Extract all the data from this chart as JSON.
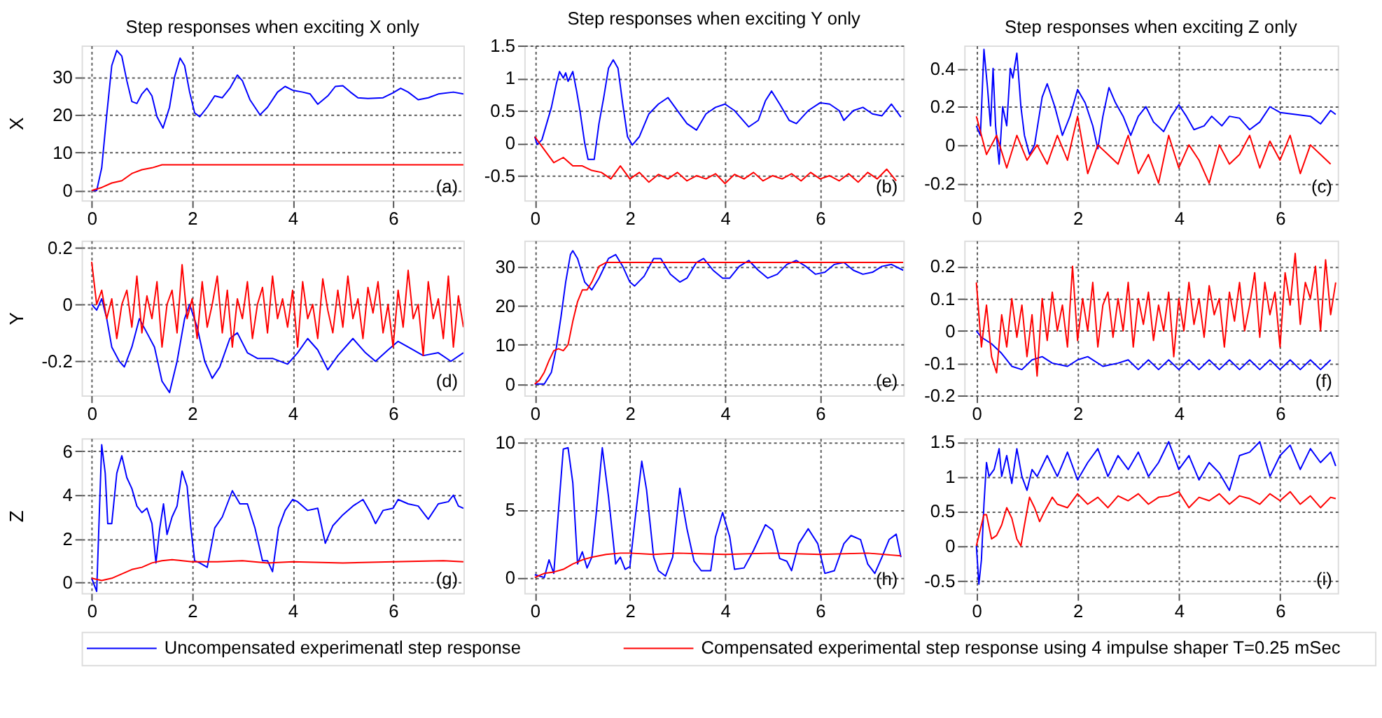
{
  "chart_data": [
    {
      "type": "line",
      "title": "Step responses when exciting X only",
      "ylabel": "X",
      "xlim": [
        -0.2,
        7.4
      ],
      "ylim": [
        -2.6,
        38.3
      ],
      "xticks": [
        0,
        2,
        4,
        6
      ],
      "yticks": [
        0,
        10,
        20,
        30
      ],
      "grid": true,
      "annotations": [
        "(a)"
      ],
      "series": [
        {
          "color": "#0000ff",
          "x": [
            0,
            0.1,
            0.2,
            0.3,
            0.4,
            0.5,
            0.6,
            0.7,
            0.8,
            0.9,
            1.0,
            1.1,
            1.2,
            1.3,
            1.42,
            1.55,
            1.65,
            1.76,
            1.85,
            1.95,
            2.05,
            2.15,
            2.3,
            2.45,
            2.6,
            2.75,
            2.9,
            3.0,
            3.15,
            3.35,
            3.5,
            3.7,
            3.85,
            4.0,
            4.2,
            4.35,
            4.5,
            4.7,
            4.85,
            5.0,
            5.15,
            5.3,
            5.5,
            5.8,
            6.0,
            6.15,
            6.3,
            6.5,
            6.7,
            6.9,
            7.2,
            7.4
          ],
          "values": [
            0,
            0,
            6,
            20,
            33,
            37,
            35.5,
            29,
            23.5,
            23,
            25.5,
            27,
            25,
            19.5,
            16.5,
            22,
            30,
            35,
            33,
            26,
            20.5,
            19.5,
            22,
            25,
            24.5,
            27,
            30.5,
            29,
            24,
            20,
            22,
            26,
            27.5,
            26.5,
            26,
            25.5,
            22.8,
            25,
            27.5,
            27.7,
            26,
            24.5,
            24.3,
            24.5,
            25.8,
            27,
            26,
            24,
            24.5,
            25.5,
            26,
            25.5
          ]
        },
        {
          "color": "#ff0000",
          "x": [
            0,
            0.2,
            0.4,
            0.6,
            0.8,
            1.0,
            1.2,
            1.4,
            2,
            4,
            6,
            7.4
          ],
          "values": [
            0,
            0.8,
            2,
            2.6,
            4.5,
            5.5,
            6,
            6.8,
            6.8,
            6.8,
            6.8,
            6.8
          ]
        }
      ]
    },
    {
      "type": "line",
      "title": "Step responses when exciting Y only",
      "xlim": [
        -0.22,
        7.75
      ],
      "ylim": [
        -0.88,
        1.5
      ],
      "xticks": [
        0,
        2,
        4,
        6
      ],
      "yticks": [
        -0.5,
        0,
        0.5,
        1,
        1.5
      ],
      "grid": true,
      "annotations": [
        "(b)"
      ],
      "series": [
        {
          "color": "#0000ff",
          "x": [
            0,
            0.05,
            0.15,
            0.25,
            0.35,
            0.45,
            0.52,
            0.6,
            0.65,
            0.7,
            0.8,
            0.88,
            0.95,
            1.05,
            1.12,
            1.25,
            1.35,
            1.45,
            1.55,
            1.65,
            1.75,
            1.85,
            1.95,
            2.05,
            2.2,
            2.4,
            2.6,
            2.8,
            3.0,
            3.2,
            3.4,
            3.6,
            3.8,
            4.0,
            4.2,
            4.5,
            4.7,
            4.85,
            4.98,
            5.15,
            5.35,
            5.5,
            5.75,
            6.0,
            6.2,
            6.4,
            6.5,
            6.7,
            6.9,
            7.1,
            7.3,
            7.5,
            7.7
          ],
          "values": [
            0.1,
            -0.02,
            0.05,
            0.3,
            0.55,
            0.9,
            1.1,
            1.0,
            1.08,
            0.95,
            1.1,
            0.8,
            0.5,
            0.0,
            -0.25,
            -0.25,
            0.3,
            0.7,
            1.15,
            1.28,
            1.15,
            0.6,
            0.1,
            -0.03,
            0.1,
            0.45,
            0.6,
            0.7,
            0.5,
            0.3,
            0.2,
            0.45,
            0.55,
            0.6,
            0.5,
            0.25,
            0.35,
            0.65,
            0.8,
            0.6,
            0.35,
            0.3,
            0.5,
            0.62,
            0.6,
            0.5,
            0.35,
            0.5,
            0.55,
            0.45,
            0.42,
            0.6,
            0.4
          ]
        },
        {
          "color": "#ff0000",
          "x": [
            0,
            0.2,
            0.4,
            0.6,
            0.8,
            1.0,
            1.2,
            1.4,
            1.6,
            1.8,
            2.0,
            2.2,
            2.4,
            2.6,
            2.8,
            3.0,
            3.2,
            3.4,
            3.6,
            3.8,
            4.0,
            4.2,
            4.4,
            4.6,
            4.8,
            5.0,
            5.2,
            5.4,
            5.6,
            5.8,
            6.0,
            6.2,
            6.4,
            6.6,
            6.8,
            7.0,
            7.2,
            7.4,
            7.6
          ],
          "values": [
            0.1,
            -0.1,
            -0.3,
            -0.22,
            -0.35,
            -0.35,
            -0.42,
            -0.45,
            -0.55,
            -0.35,
            -0.55,
            -0.45,
            -0.6,
            -0.48,
            -0.55,
            -0.45,
            -0.58,
            -0.5,
            -0.55,
            -0.47,
            -0.62,
            -0.48,
            -0.55,
            -0.45,
            -0.58,
            -0.5,
            -0.55,
            -0.47,
            -0.58,
            -0.45,
            -0.55,
            -0.5,
            -0.58,
            -0.47,
            -0.6,
            -0.45,
            -0.55,
            -0.4,
            -0.58
          ]
        }
      ]
    },
    {
      "type": "line",
      "title": "Step responses when exciting Z only",
      "xlim": [
        -0.24,
        7.14
      ],
      "ylim": [
        -0.29,
        0.52
      ],
      "xticks": [
        0,
        2,
        4,
        6
      ],
      "yticks": [
        -0.2,
        0,
        0.2,
        0.4
      ],
      "grid": true,
      "annotations": [
        "(c)"
      ],
      "series": [
        {
          "color": "#0000ff",
          "x": [
            0,
            0.08,
            0.15,
            0.22,
            0.28,
            0.33,
            0.38,
            0.45,
            0.52,
            0.6,
            0.67,
            0.72,
            0.8,
            0.88,
            0.95,
            1.05,
            1.15,
            1.3,
            1.4,
            1.55,
            1.7,
            1.85,
            2.0,
            2.15,
            2.3,
            2.4,
            2.5,
            2.62,
            2.75,
            2.9,
            3.05,
            3.2,
            3.35,
            3.5,
            3.7,
            3.85,
            4.0,
            4.15,
            4.3,
            4.5,
            4.65,
            4.85,
            5.0,
            5.2,
            5.4,
            5.6,
            5.8,
            6.0,
            6.3,
            6.6,
            6.8,
            7.0,
            7.1
          ],
          "values": [
            0.1,
            0.05,
            0.5,
            0.3,
            0.1,
            0.4,
            0.1,
            -0.1,
            0.2,
            0.1,
            0.4,
            0.35,
            0.48,
            0.2,
            0.05,
            -0.05,
            0.0,
            0.25,
            0.32,
            0.2,
            0.05,
            0.15,
            0.29,
            0.22,
            0.1,
            -0.02,
            0.15,
            0.3,
            0.22,
            0.15,
            0.05,
            0.15,
            0.2,
            0.12,
            0.07,
            0.15,
            0.21,
            0.15,
            0.08,
            0.1,
            0.15,
            0.1,
            0.15,
            0.14,
            0.08,
            0.12,
            0.2,
            0.17,
            0.16,
            0.15,
            0.11,
            0.18,
            0.16
          ]
        },
        {
          "color": "#ff0000",
          "x": [
            0,
            0.2,
            0.4,
            0.6,
            0.8,
            1.0,
            1.2,
            1.4,
            1.6,
            1.8,
            2.0,
            2.2,
            2.4,
            2.6,
            2.8,
            3.0,
            3.2,
            3.4,
            3.6,
            3.8,
            4.0,
            4.2,
            4.4,
            4.6,
            4.8,
            5.0,
            5.2,
            5.4,
            5.6,
            5.8,
            6.0,
            6.2,
            6.4,
            6.6,
            6.8,
            7.0
          ],
          "values": [
            0.15,
            -0.05,
            0.05,
            -0.12,
            0.05,
            -0.08,
            0.0,
            -0.1,
            0.05,
            -0.08,
            0.15,
            -0.15,
            0.0,
            -0.05,
            -0.1,
            0.05,
            -0.15,
            -0.05,
            -0.2,
            0.05,
            -0.12,
            0.0,
            -0.08,
            -0.2,
            0.0,
            -0.1,
            -0.05,
            0.05,
            -0.12,
            0.02,
            -0.08,
            0.05,
            -0.15,
            0.0,
            -0.05,
            -0.1
          ]
        }
      ]
    },
    {
      "type": "line",
      "ylabel": "Y",
      "xlim": [
        -0.2,
        7.4
      ],
      "ylim": [
        -0.32,
        0.225
      ],
      "xticks": [
        0,
        2,
        4,
        6
      ],
      "yticks": [
        -0.2,
        0,
        0.2
      ],
      "grid": true,
      "annotations": [
        "(d)"
      ],
      "series": [
        {
          "color": "#0000ff",
          "x": [
            0,
            0.1,
            0.2,
            0.3,
            0.4,
            0.55,
            0.65,
            0.8,
            0.95,
            1.1,
            1.25,
            1.4,
            1.55,
            1.7,
            1.85,
            1.95,
            2.1,
            2.25,
            2.4,
            2.55,
            2.75,
            2.9,
            3.1,
            3.3,
            3.6,
            3.9,
            4.1,
            4.3,
            4.5,
            4.7,
            4.9,
            5.2,
            5.45,
            5.65,
            5.9,
            6.1,
            6.3,
            6.6,
            6.9,
            7.15,
            7.4
          ],
          "values": [
            0.0,
            -0.02,
            0.02,
            -0.05,
            -0.15,
            -0.2,
            -0.22,
            -0.15,
            -0.05,
            -0.1,
            -0.15,
            -0.27,
            -0.31,
            -0.2,
            -0.05,
            0.0,
            -0.08,
            -0.2,
            -0.26,
            -0.22,
            -0.12,
            -0.1,
            -0.17,
            -0.19,
            -0.19,
            -0.21,
            -0.17,
            -0.12,
            -0.16,
            -0.23,
            -0.18,
            -0.12,
            -0.17,
            -0.2,
            -0.16,
            -0.13,
            -0.15,
            -0.18,
            -0.17,
            -0.2,
            -0.17
          ]
        },
        {
          "color": "#ff0000",
          "x": [
            0,
            0.1,
            0.2,
            0.3,
            0.4,
            0.5,
            0.6,
            0.7,
            0.8,
            0.9,
            1,
            1.1,
            1.2,
            1.3,
            1.4,
            1.5,
            1.6,
            1.7,
            1.8,
            1.9,
            2,
            2.1,
            2.2,
            2.3,
            2.4,
            2.5,
            2.6,
            2.7,
            2.8,
            2.9,
            3,
            3.1,
            3.2,
            3.3,
            3.4,
            3.5,
            3.6,
            3.7,
            3.8,
            3.9,
            4,
            4.1,
            4.2,
            4.3,
            4.4,
            4.5,
            4.6,
            4.7,
            4.8,
            4.9,
            5,
            5.1,
            5.2,
            5.3,
            5.4,
            5.5,
            5.6,
            5.7,
            5.8,
            5.9,
            6,
            6.1,
            6.2,
            6.3,
            6.4,
            6.5,
            6.6,
            6.7,
            6.8,
            6.9,
            7,
            7.1,
            7.2,
            7.3,
            7.4
          ],
          "values": [
            0.15,
            0.0,
            0.05,
            -0.05,
            0.02,
            -0.12,
            0.0,
            0.05,
            -0.08,
            0.1,
            -0.1,
            0.03,
            -0.05,
            0.08,
            -0.15,
            0.0,
            0.05,
            -0.1,
            0.14,
            -0.05,
            0.02,
            -0.12,
            0.08,
            -0.08,
            0.0,
            0.1,
            -0.1,
            0.05,
            -0.15,
            0.02,
            -0.05,
            0.08,
            -0.12,
            0.0,
            0.06,
            -0.1,
            0.1,
            -0.05,
            0.02,
            -0.08,
            0.05,
            -0.15,
            0.08,
            -0.05,
            0.0,
            -0.12,
            0.09,
            -0.02,
            -0.1,
            0.05,
            -0.08,
            0.1,
            -0.05,
            0.02,
            -0.12,
            0.06,
            -0.03,
            0.08,
            -0.1,
            0.0,
            -0.15,
            0.05,
            -0.08,
            0.12,
            -0.05,
            0.0,
            -0.18,
            0.08,
            -0.05,
            0.02,
            -0.12,
            0.1,
            -0.15,
            0.03,
            -0.08
          ]
        }
      ]
    },
    {
      "type": "line",
      "xlim": [
        -0.22,
        7.75
      ],
      "ylim": [
        -2.9,
        36.6
      ],
      "xticks": [
        0,
        2,
        4,
        6
      ],
      "yticks": [
        0,
        10,
        20,
        30
      ],
      "grid": true,
      "annotations": [
        "(e)"
      ],
      "series": [
        {
          "color": "#0000ff",
          "x": [
            0,
            0.2,
            0.35,
            0.45,
            0.55,
            0.65,
            0.75,
            0.8,
            0.9,
            1.05,
            1.2,
            1.35,
            1.55,
            1.7,
            1.85,
            2.0,
            2.1,
            2.3,
            2.5,
            2.65,
            2.85,
            3.05,
            3.2,
            3.4,
            3.55,
            3.75,
            3.95,
            4.1,
            4.3,
            4.5,
            4.7,
            4.9,
            5.1,
            5.3,
            5.5,
            5.7,
            5.9,
            6.1,
            6.3,
            6.5,
            6.7,
            6.9,
            7.1,
            7.3,
            7.5,
            7.75
          ],
          "values": [
            0,
            0,
            3,
            9,
            17,
            26,
            33,
            34,
            32,
            26,
            24,
            27,
            32,
            33,
            30,
            26,
            25,
            27.5,
            32,
            32,
            28,
            26,
            27,
            31,
            32,
            29,
            27,
            27,
            30,
            31.5,
            29,
            27,
            28,
            30.5,
            31.5,
            30,
            28,
            28.5,
            30.5,
            31,
            29,
            28,
            28.5,
            30,
            30.5,
            29
          ]
        },
        {
          "color": "#ff0000",
          "x": [
            0,
            0.1,
            0.2,
            0.3,
            0.4,
            0.5,
            0.6,
            0.7,
            0.8,
            0.9,
            1.0,
            1.1,
            1.2,
            1.35,
            1.5,
            2,
            4,
            6,
            7.75
          ],
          "values": [
            0,
            1,
            3,
            6,
            8.5,
            9,
            8.5,
            10,
            16,
            21,
            24,
            24,
            26,
            30,
            31,
            31,
            31,
            31,
            31
          ]
        }
      ]
    },
    {
      "type": "line",
      "xlim": [
        -0.24,
        7.14
      ],
      "ylim": [
        -0.2,
        0.28
      ],
      "xticks": [
        0,
        2,
        4,
        6
      ],
      "yticks": [
        -0.2,
        -0.1,
        0,
        0.1,
        0.2
      ],
      "grid": true,
      "annotations": [
        "(f)"
      ],
      "series": [
        {
          "color": "#0000ff",
          "x": [
            0,
            0.1,
            0.3,
            0.5,
            0.7,
            0.9,
            1.1,
            1.3,
            1.5,
            1.8,
            2.0,
            2.2,
            2.5,
            2.8,
            3.0,
            3.2,
            3.4,
            3.6,
            3.8,
            4.0,
            4.2,
            4.4,
            4.6,
            4.8,
            5.0,
            5.2,
            5.4,
            5.6,
            5.8,
            6.0,
            6.2,
            6.4,
            6.6,
            6.8,
            7.0
          ],
          "values": [
            0.0,
            -0.02,
            -0.04,
            -0.07,
            -0.11,
            -0.12,
            -0.09,
            -0.08,
            -0.1,
            -0.11,
            -0.09,
            -0.08,
            -0.11,
            -0.1,
            -0.09,
            -0.12,
            -0.09,
            -0.12,
            -0.09,
            -0.12,
            -0.09,
            -0.12,
            -0.09,
            -0.12,
            -0.09,
            -0.12,
            -0.09,
            -0.12,
            -0.09,
            -0.12,
            -0.09,
            -0.12,
            -0.09,
            -0.12,
            -0.09
          ]
        },
        {
          "color": "#ff0000",
          "x": [
            0,
            0.1,
            0.2,
            0.3,
            0.4,
            0.5,
            0.6,
            0.7,
            0.8,
            0.9,
            1,
            1.1,
            1.2,
            1.3,
            1.4,
            1.5,
            1.6,
            1.7,
            1.8,
            1.9,
            2,
            2.1,
            2.2,
            2.3,
            2.4,
            2.5,
            2.6,
            2.7,
            2.8,
            2.9,
            3,
            3.1,
            3.2,
            3.3,
            3.4,
            3.5,
            3.6,
            3.7,
            3.8,
            3.9,
            4,
            4.1,
            4.2,
            4.3,
            4.4,
            4.5,
            4.6,
            4.7,
            4.8,
            4.9,
            5,
            5.1,
            5.2,
            5.3,
            5.4,
            5.5,
            5.6,
            5.7,
            5.8,
            5.9,
            6,
            6.1,
            6.2,
            6.3,
            6.4,
            6.5,
            6.6,
            6.7,
            6.8,
            6.9,
            7,
            7.1
          ],
          "values": [
            0.15,
            -0.05,
            0.08,
            -0.08,
            -0.13,
            0.05,
            -0.05,
            0.1,
            -0.02,
            0.08,
            -0.08,
            0.05,
            -0.14,
            0.1,
            -0.03,
            0.12,
            0.0,
            0.08,
            -0.05,
            0.2,
            -0.03,
            0.1,
            0.0,
            0.15,
            -0.05,
            0.08,
            0.12,
            -0.02,
            0.1,
            0.0,
            0.15,
            -0.05,
            0.1,
            0.02,
            0.12,
            -0.03,
            0.08,
            0.0,
            0.12,
            -0.08,
            0.1,
            0.0,
            0.15,
            0.02,
            0.1,
            -0.02,
            0.14,
            0.05,
            0.1,
            -0.05,
            0.12,
            0.03,
            0.15,
            0.0,
            0.08,
            0.18,
            -0.02,
            0.15,
            0.05,
            0.12,
            -0.05,
            0.18,
            0.08,
            0.24,
            0.02,
            0.15,
            0.1,
            0.2,
            0.0,
            0.22,
            0.05,
            0.15
          ]
        }
      ]
    },
    {
      "type": "line",
      "ylabel": "Z",
      "xlim": [
        -0.2,
        7.4
      ],
      "ylim": [
        -0.48,
        6.6
      ],
      "xticks": [
        0,
        2,
        4,
        6
      ],
      "yticks": [
        0,
        2,
        4,
        6
      ],
      "grid": true,
      "annotations": [
        "(g)"
      ],
      "series": [
        {
          "color": "#0000ff",
          "x": [
            0,
            0.1,
            0.15,
            0.2,
            0.27,
            0.32,
            0.4,
            0.5,
            0.6,
            0.7,
            0.8,
            0.9,
            1.0,
            1.1,
            1.2,
            1.28,
            1.35,
            1.43,
            1.5,
            1.6,
            1.7,
            1.8,
            1.9,
            1.97,
            2.05,
            2.15,
            2.3,
            2.45,
            2.6,
            2.8,
            2.95,
            3.1,
            3.25,
            3.4,
            3.5,
            3.6,
            3.72,
            3.85,
            4.0,
            4.1,
            4.3,
            4.5,
            4.65,
            4.8,
            5.0,
            5.2,
            5.4,
            5.55,
            5.65,
            5.8,
            6.0,
            6.1,
            6.3,
            6.5,
            6.7,
            6.9,
            7.1,
            7.2,
            7.3,
            7.4
          ],
          "values": [
            0.2,
            -0.4,
            3,
            6.3,
            5,
            2.7,
            2.7,
            5,
            5.8,
            4.8,
            4.3,
            3.5,
            3.2,
            3.4,
            2.7,
            0.9,
            2.4,
            3.6,
            2.2,
            3,
            3.5,
            5.1,
            4.4,
            2.6,
            1.0,
            0.9,
            0.7,
            2.5,
            3.0,
            4.2,
            3.6,
            3.6,
            2.5,
            1.0,
            1.0,
            0.5,
            2.5,
            3.3,
            3.8,
            3.7,
            3.3,
            3.4,
            1.8,
            2.6,
            3.1,
            3.5,
            3.8,
            3.2,
            2.7,
            3.3,
            3.4,
            3.8,
            3.6,
            3.5,
            2.9,
            3.6,
            3.7,
            4.0,
            3.5,
            3.4
          ]
        },
        {
          "color": "#ff0000",
          "x": [
            0,
            0.2,
            0.4,
            0.6,
            0.8,
            1.0,
            1.2,
            1.4,
            1.6,
            1.8,
            2.0,
            2.5,
            3,
            3.5,
            4,
            5,
            6,
            7,
            7.4
          ],
          "values": [
            0.2,
            0.1,
            0.2,
            0.4,
            0.6,
            0.7,
            0.9,
            1.0,
            1.05,
            1.0,
            0.95,
            0.95,
            1.0,
            0.9,
            0.95,
            0.9,
            0.95,
            1.0,
            0.95
          ]
        }
      ]
    },
    {
      "type": "line",
      "xlim": [
        -0.22,
        7.75
      ],
      "ylim": [
        -1.16,
        10.3
      ],
      "xticks": [
        0,
        2,
        4,
        6
      ],
      "yticks": [
        0,
        5,
        10
      ],
      "grid": true,
      "legend": "bottom",
      "annotations": [
        "(h)"
      ],
      "series": [
        {
          "name": "Uncompensated experimenatl step response",
          "color": "#0000ff",
          "x": [
            0,
            0.1,
            0.2,
            0.3,
            0.4,
            0.5,
            0.6,
            0.7,
            0.8,
            0.9,
            1.0,
            1.1,
            1.2,
            1.3,
            1.42,
            1.55,
            1.7,
            1.8,
            1.9,
            2.0,
            2.1,
            2.25,
            2.35,
            2.5,
            2.6,
            2.75,
            2.9,
            3.05,
            3.2,
            3.35,
            3.5,
            3.7,
            3.8,
            3.95,
            4.1,
            4.2,
            4.4,
            4.6,
            4.85,
            5.0,
            5.15,
            5.3,
            5.4,
            5.55,
            5.75,
            5.95,
            6.1,
            6.3,
            6.5,
            6.65,
            6.85,
            7.0,
            7.15,
            7.3,
            7.45,
            7.6,
            7.7
          ],
          "values": [
            0.2,
            0.1,
            0,
            1.3,
            0.3,
            5,
            9.5,
            9.6,
            7,
            1,
            1.9,
            0.7,
            1.5,
            5,
            9.6,
            6,
            1,
            1.5,
            0.6,
            0.8,
            4,
            8.6,
            6.5,
            1.5,
            0.5,
            0.1,
            1.5,
            6.6,
            3.6,
            1.2,
            0.5,
            0.5,
            3,
            4.8,
            3,
            0.6,
            0.7,
            2,
            3.9,
            3.5,
            1.4,
            1.2,
            0.5,
            2.5,
            3.6,
            2.5,
            0.3,
            0.5,
            2.5,
            3.1,
            2.8,
            1,
            0.3,
            1.5,
            2.8,
            3.2,
            1.5
          ]
        },
        {
          "name": "Compensated experimental step response using 4 impulse shaper T=0.25 mSec",
          "color": "#ff0000",
          "x": [
            0,
            0.2,
            0.4,
            0.6,
            0.8,
            1.0,
            1.2,
            1.5,
            1.8,
            2.0,
            2.5,
            3,
            4,
            5,
            6,
            7,
            7.7
          ],
          "values": [
            0,
            0.3,
            0.4,
            0.6,
            1.0,
            1.3,
            1.5,
            1.7,
            1.8,
            1.8,
            1.7,
            1.8,
            1.7,
            1.8,
            1.7,
            1.8,
            1.6
          ]
        }
      ]
    },
    {
      "type": "line",
      "xlim": [
        -0.24,
        7.14
      ],
      "ylim": [
        -0.68,
        1.55
      ],
      "xticks": [
        0,
        2,
        4,
        6
      ],
      "yticks": [
        -0.5,
        0,
        0.5,
        1,
        1.5
      ],
      "grid": true,
      "annotations": [
        "(i)"
      ],
      "series": [
        {
          "color": "#0000ff",
          "x": [
            0,
            0.05,
            0.1,
            0.15,
            0.2,
            0.25,
            0.35,
            0.45,
            0.5,
            0.6,
            0.7,
            0.8,
            0.9,
            1.0,
            1.1,
            1.2,
            1.4,
            1.6,
            1.8,
            2.0,
            2.2,
            2.4,
            2.6,
            2.8,
            3.0,
            3.2,
            3.4,
            3.6,
            3.8,
            4.0,
            4.2,
            4.4,
            4.6,
            4.8,
            5.0,
            5.2,
            5.4,
            5.6,
            5.8,
            6.0,
            6.2,
            6.4,
            6.6,
            6.8,
            7.0,
            7.1
          ],
          "values": [
            0,
            -0.55,
            -0.2,
            0.6,
            1.2,
            1.0,
            1.1,
            1.4,
            1.0,
            1.3,
            0.9,
            1.4,
            1.0,
            0.8,
            1.1,
            1.0,
            1.3,
            1.0,
            1.35,
            0.95,
            1.2,
            1.4,
            1.0,
            1.3,
            1.1,
            1.35,
            1.0,
            1.2,
            1.5,
            1.1,
            1.3,
            0.95,
            1.2,
            1.05,
            0.8,
            1.3,
            1.35,
            1.5,
            1.0,
            1.3,
            1.45,
            1.1,
            1.4,
            1.2,
            1.35,
            1.15
          ]
        },
        {
          "color": "#ff0000",
          "x": [
            0,
            0.05,
            0.15,
            0.2,
            0.3,
            0.4,
            0.5,
            0.6,
            0.7,
            0.8,
            0.88,
            0.95,
            1.05,
            1.15,
            1.25,
            1.35,
            1.5,
            1.6,
            1.8,
            2.0,
            2.2,
            2.4,
            2.6,
            2.8,
            3.0,
            3.2,
            3.4,
            3.6,
            3.8,
            4.0,
            4.2,
            4.4,
            4.6,
            4.8,
            5.0,
            5.2,
            5.4,
            5.6,
            5.8,
            6.0,
            6.2,
            6.4,
            6.6,
            6.8,
            7.0,
            7.1
          ],
          "values": [
            0,
            0.15,
            0.45,
            0.45,
            0.1,
            0.15,
            0.3,
            0.55,
            0.4,
            0.1,
            0.0,
            0.3,
            0.7,
            0.55,
            0.35,
            0.5,
            0.7,
            0.6,
            0.55,
            0.75,
            0.6,
            0.7,
            0.55,
            0.72,
            0.65,
            0.75,
            0.6,
            0.7,
            0.72,
            0.78,
            0.55,
            0.7,
            0.65,
            0.75,
            0.6,
            0.72,
            0.68,
            0.6,
            0.75,
            0.65,
            0.78,
            0.6,
            0.72,
            0.55,
            0.7,
            0.68
          ]
        }
      ]
    }
  ]
}
